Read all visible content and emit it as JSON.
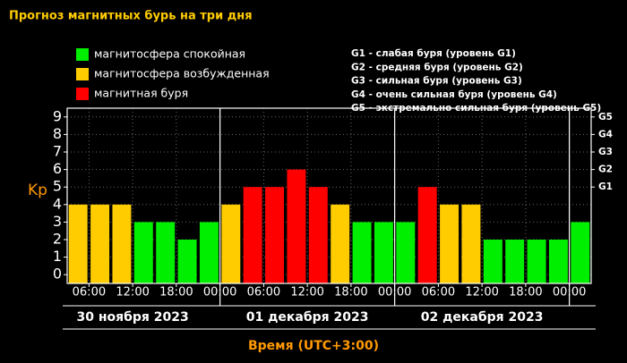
{
  "chart_data": {
    "type": "bar",
    "title": "Прогноз магнитных бурь на три дня",
    "legend": [
      {
        "label": "магнитосфера спокойная",
        "color": "#00ee00"
      },
      {
        "label": "магнитосфера возбужденная",
        "color": "#ffcc00"
      },
      {
        "label": "магнитная буря",
        "color": "#ff0000"
      }
    ],
    "g_legend": [
      "G1 - слабая буря (уровень G1)",
      "G2 - средняя буря (уровень G2)",
      "G3 - сильная буря (уровень G3)",
      "G4 - очень сильная буря (уровень G4)",
      "G5 - экстремально сильная буря (уровень G5)"
    ],
    "ylabel": "Kp",
    "xlabel": "Время (UTC+3:00)",
    "days": [
      "30 ноября 2023",
      "01 декабря 2023",
      "02 декабря 2023"
    ],
    "x": [
      4.5,
      7.5,
      10.5,
      13.5,
      16.5,
      19.5,
      22.5,
      25.5,
      28.5,
      31.5,
      34.5,
      37.5,
      40.5,
      43.5,
      46.5,
      49.5,
      52.5,
      55.5,
      58.5,
      61.5,
      64.5,
      67.5,
      70.5,
      73.5
    ],
    "values": [
      4,
      4,
      4,
      3,
      3,
      2,
      3,
      4,
      5,
      5,
      6,
      5,
      4,
      3,
      3,
      3,
      5,
      4,
      4,
      2,
      2,
      2,
      2,
      3
    ],
    "bar_colors": [
      "#ffcc00",
      "#ffcc00",
      "#ffcc00",
      "#00ee00",
      "#00ee00",
      "#00ee00",
      "#00ee00",
      "#ffcc00",
      "#ff0000",
      "#ff0000",
      "#ff0000",
      "#ff0000",
      "#ffcc00",
      "#00ee00",
      "#00ee00",
      "#00ee00",
      "#ff0000",
      "#ffcc00",
      "#ffcc00",
      "#00ee00",
      "#00ee00",
      "#00ee00",
      "#00ee00",
      "#00ee00"
    ],
    "xlim": [
      3,
      75
    ],
    "xticks": [
      {
        "value": 6,
        "label": "06:00"
      },
      {
        "value": 12,
        "label": "12:00"
      },
      {
        "value": 18,
        "label": "18:00"
      },
      {
        "value": 24,
        "label": "00:00"
      },
      {
        "value": 30,
        "label": "06:00"
      },
      {
        "value": 36,
        "label": "12:00"
      },
      {
        "value": 42,
        "label": "18:00"
      },
      {
        "value": 48,
        "label": "00:00"
      },
      {
        "value": 54,
        "label": "06:00"
      },
      {
        "value": 60,
        "label": "12:00"
      },
      {
        "value": 66,
        "label": "18:00"
      },
      {
        "value": 72,
        "label": "00:00"
      }
    ],
    "ylim": [
      -0.5,
      9.5
    ],
    "yticks": [
      0,
      1,
      2,
      3,
      4,
      5,
      6,
      7,
      8,
      9
    ],
    "y2lim": [
      -0.5,
      9.5
    ],
    "y2ticks": [
      {
        "value": 5,
        "label": "G1"
      },
      {
        "value": 6,
        "label": "G2"
      },
      {
        "value": 7,
        "label": "G3"
      },
      {
        "value": 8,
        "label": "G4"
      },
      {
        "value": 9,
        "label": "G5"
      }
    ],
    "grid": true
  }
}
